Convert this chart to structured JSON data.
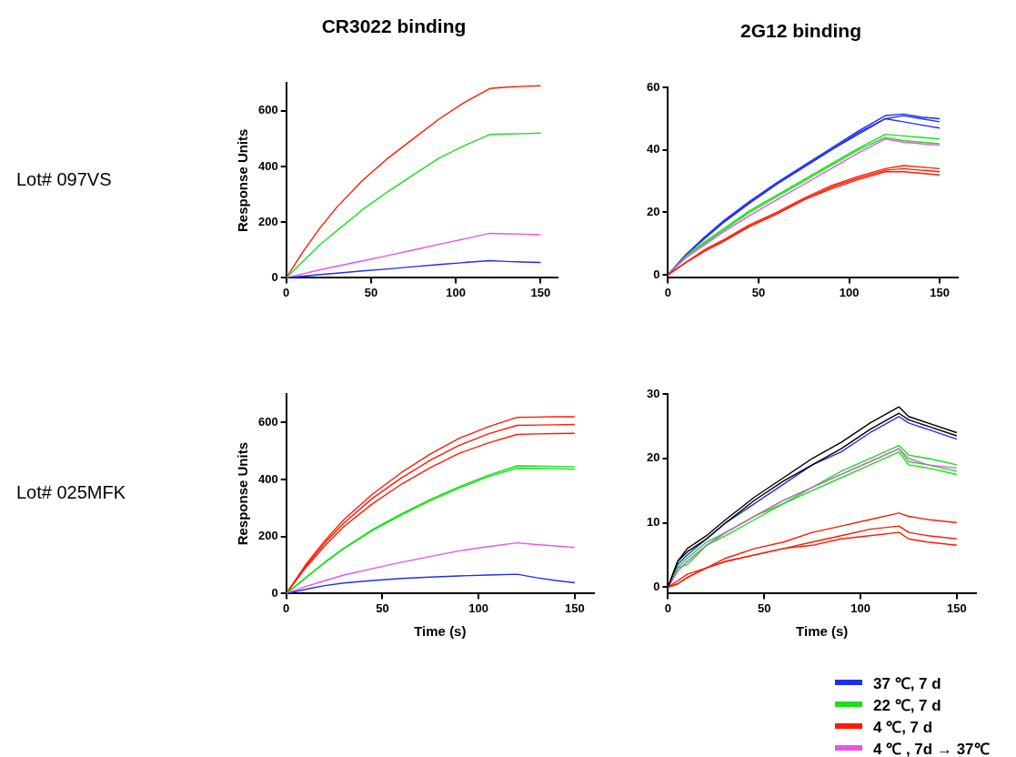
{
  "chart_data": [
    {
      "type": "line",
      "title": "CR3022 binding",
      "ylabel": "Response Units",
      "annotations": [
        "Lot# 097VS"
      ],
      "marker": "none",
      "grid": false,
      "legend": false,
      "x": [
        0,
        10,
        20,
        30,
        45,
        60,
        75,
        90,
        105,
        120,
        130,
        140,
        150
      ],
      "xlim": [
        0,
        160
      ],
      "xticks": [
        0,
        50,
        100,
        150
      ],
      "ylim": [
        0,
        700
      ],
      "yticks": [
        0,
        200,
        400,
        600
      ],
      "series": [
        {
          "color": "#ff1a00",
          "values": [
            0,
            95,
            180,
            255,
            350,
            430,
            500,
            570,
            630,
            680,
            685,
            688,
            690
          ]
        },
        {
          "color": "#19e019",
          "values": [
            0,
            60,
            120,
            170,
            245,
            310,
            370,
            430,
            475,
            515,
            517,
            518,
            520
          ]
        },
        {
          "color": "#e754e7",
          "values": [
            0,
            15,
            29,
            42,
            61,
            80,
            100,
            120,
            140,
            160,
            158,
            157,
            155
          ]
        },
        {
          "color": "#1f2ff0",
          "values": [
            0,
            6,
            12,
            17,
            25,
            32,
            40,
            48,
            55,
            62,
            59,
            57,
            55
          ]
        }
      ]
    },
    {
      "type": "line",
      "title": "2G12 binding",
      "marker": "none",
      "grid": false,
      "legend": false,
      "x": [
        0,
        10,
        20,
        30,
        45,
        60,
        75,
        90,
        105,
        120,
        130,
        140,
        150
      ],
      "xlim": [
        0,
        160
      ],
      "xticks": [
        0,
        50,
        100,
        150
      ],
      "ylim": [
        -1,
        60
      ],
      "yticks": [
        0,
        20,
        40,
        60
      ],
      "series": [
        {
          "color": "#1f2ff0",
          "values": [
            0,
            6.5,
            12,
            17,
            23.5,
            29.5,
            35,
            40.5,
            46,
            51,
            51.5,
            50.5,
            50
          ]
        },
        {
          "color": "#1f2ff0",
          "values": [
            0,
            6.5,
            11.5,
            16.5,
            23,
            29,
            34.5,
            40,
            45.5,
            50,
            51,
            50,
            49
          ]
        },
        {
          "color": "#1f2ff0",
          "values": [
            0,
            6.5,
            11.5,
            16.5,
            23,
            29,
            34.5,
            40,
            45,
            50,
            49,
            48,
            47
          ]
        },
        {
          "color": "#19e019",
          "values": [
            0,
            6,
            10.5,
            14.5,
            20.5,
            25.5,
            30.5,
            35.5,
            40.5,
            45,
            44.5,
            44,
            43.5
          ]
        },
        {
          "color": "#19e019",
          "values": [
            0,
            6,
            10,
            14,
            20,
            25,
            30,
            35,
            40,
            44,
            43,
            42.5,
            42
          ]
        },
        {
          "color": "#e754e7",
          "values": [
            0,
            5.5,
            9.5,
            13.5,
            19,
            24,
            29,
            34,
            39,
            43.5,
            42.5,
            42,
            41.5
          ]
        },
        {
          "color": "#ff1a00",
          "values": [
            0,
            4,
            8,
            11,
            16,
            20,
            24.5,
            28.5,
            31.5,
            34,
            35,
            34.5,
            34
          ]
        },
        {
          "color": "#ff1a00",
          "values": [
            0,
            4,
            7.5,
            10.5,
            15.5,
            19.5,
            24,
            28,
            31,
            33.5,
            34,
            33.5,
            33
          ]
        },
        {
          "color": "#ff1a00",
          "values": [
            0,
            4,
            7.5,
            10.5,
            15.5,
            19.5,
            24,
            27.5,
            30.5,
            33,
            33,
            32.5,
            32
          ]
        }
      ]
    },
    {
      "type": "line",
      "xlabel": "Time (s)",
      "ylabel": "Response Units",
      "annotations": [
        "Lot# 025MFK"
      ],
      "marker": "none",
      "grid": false,
      "legend": false,
      "x": [
        0,
        10,
        20,
        30,
        45,
        60,
        75,
        90,
        105,
        120,
        130,
        140,
        150
      ],
      "xlim": [
        0,
        160
      ],
      "xticks": [
        0,
        50,
        100,
        150
      ],
      "ylim": [
        0,
        700
      ],
      "yticks": [
        0,
        200,
        400,
        600
      ],
      "series": [
        {
          "color": "#ff1a00",
          "values": [
            0,
            100,
            185,
            260,
            350,
            425,
            490,
            545,
            585,
            618,
            619,
            620,
            620
          ]
        },
        {
          "color": "#ff1a00",
          "values": [
            0,
            95,
            177,
            248,
            335,
            406,
            468,
            520,
            560,
            590,
            591,
            592,
            593
          ]
        },
        {
          "color": "#ff1a00",
          "values": [
            0,
            90,
            167,
            235,
            316,
            384,
            442,
            492,
            528,
            558,
            560,
            561,
            562
          ]
        },
        {
          "color": "#19e019",
          "values": [
            0,
            55,
            110,
            160,
            225,
            280,
            330,
            375,
            415,
            448,
            447,
            446,
            445
          ]
        },
        {
          "color": "#19e019",
          "values": [
            0,
            54,
            108,
            158,
            222,
            276,
            326,
            370,
            410,
            440,
            439,
            438,
            437
          ]
        },
        {
          "color": "#e754e7",
          "values": [
            0,
            25,
            45,
            65,
            88,
            110,
            130,
            150,
            165,
            178,
            172,
            167,
            162
          ]
        },
        {
          "color": "#1f2ff0",
          "values": [
            0,
            15,
            28,
            37,
            46,
            53,
            58,
            62,
            65,
            68,
            56,
            46,
            38
          ]
        }
      ]
    },
    {
      "type": "line",
      "xlabel": "Time (s)",
      "marker": "none",
      "grid": false,
      "legend": "bottom right",
      "x": [
        0,
        5,
        10,
        20,
        30,
        45,
        60,
        75,
        90,
        105,
        120,
        125,
        135,
        150
      ],
      "xlim": [
        0,
        160
      ],
      "xticks": [
        0,
        50,
        100,
        150
      ],
      "ylim": [
        -1,
        30
      ],
      "yticks": [
        0,
        10,
        20,
        30
      ],
      "series": [
        {
          "name": "37 ℃, 7 d",
          "color": "#1f2ff0",
          "values": [
            0,
            3.5,
            5,
            7.5,
            10,
            13,
            16,
            19,
            21,
            24,
            26.5,
            25.5,
            24.5,
            23
          ]
        },
        {
          "name": "22 ℃, 7 d",
          "color": "#19e019",
          "values": [
            0,
            3,
            4.5,
            7,
            8.5,
            11,
            13.5,
            15.5,
            18,
            20,
            22,
            20.5,
            20,
            19
          ]
        },
        {
          "color": "#19e019",
          "values": [
            0,
            2.5,
            4,
            6.5,
            8.5,
            11,
            13,
            15.5,
            17.5,
            19.5,
            21.5,
            19.5,
            19,
            18
          ]
        },
        {
          "color": "#19e019",
          "values": [
            0,
            3,
            3.5,
            6.5,
            8,
            10.5,
            13,
            15,
            17,
            19,
            21,
            19,
            18.5,
            17.5
          ]
        },
        {
          "name": "4 ℃, 7 d",
          "color": "#ff1a00",
          "values": [
            0,
            1,
            2,
            3,
            4.5,
            6,
            7,
            8.5,
            9.5,
            10.5,
            11.5,
            11,
            10.5,
            10
          ]
        },
        {
          "color": "#ff1a00",
          "values": [
            0,
            0.5,
            1.5,
            3,
            4,
            5,
            6,
            7,
            8,
            9,
            9.5,
            8.5,
            8,
            7.5
          ]
        },
        {
          "color": "#ff1a00",
          "values": [
            0,
            0.5,
            1.5,
            3,
            4,
            5,
            6,
            6.5,
            7.5,
            8,
            8.5,
            7.5,
            7,
            6.5
          ]
        },
        {
          "name": "4 ℃ , 7d → 37℃",
          "color": "#e754e7",
          "values": [
            0,
            2.5,
            4,
            6.5,
            8.5,
            11,
            13.5,
            15.5,
            17.5,
            19.5,
            21.5,
            20,
            19,
            18.5
          ]
        },
        {
          "color": "#000000",
          "values": [
            0,
            4,
            6,
            8,
            10.5,
            14,
            17,
            20,
            22.5,
            25.5,
            28,
            26.5,
            25.5,
            24
          ]
        },
        {
          "color": "#000000",
          "values": [
            0,
            4,
            5.5,
            7.5,
            10,
            13.5,
            16.5,
            19,
            21.5,
            24.5,
            27,
            26,
            25,
            23.5
          ]
        }
      ]
    }
  ]
}
